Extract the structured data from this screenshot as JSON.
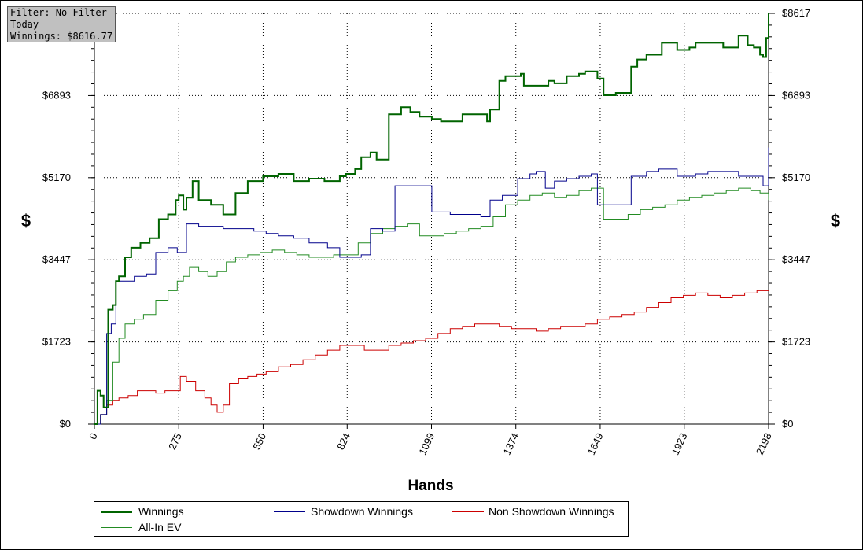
{
  "info": {
    "filter": "Filter: No Filter",
    "period": "Today",
    "winnings": "Winnings: $8616.77"
  },
  "chart_data": {
    "type": "line",
    "xlabel": "Hands",
    "ylabel": "$",
    "xlim": [
      0,
      2198
    ],
    "ylim": [
      0,
      8617
    ],
    "x_ticks": [
      "0",
      "275",
      "550",
      "824",
      "1099",
      "1374",
      "1649",
      "1923",
      "2198"
    ],
    "x_tick_values": [
      0,
      275,
      550,
      824,
      1099,
      1374,
      1649,
      1923,
      2198
    ],
    "y_ticks": [
      "$0",
      "$1723",
      "$3447",
      "$5170",
      "$6893",
      "$8617"
    ],
    "y_tick_values": [
      0,
      1723,
      3447,
      5170,
      6893,
      8617
    ],
    "grid": true,
    "legend_position": "bottom",
    "series": [
      {
        "name": "Winnings",
        "color": "#006400",
        "width": 2,
        "x": [
          0,
          10,
          20,
          30,
          45,
          60,
          70,
          80,
          100,
          120,
          150,
          180,
          210,
          240,
          265,
          275,
          290,
          300,
          320,
          340,
          380,
          420,
          460,
          500,
          550,
          600,
          650,
          700,
          750,
          800,
          820,
          850,
          870,
          900,
          920,
          960,
          1000,
          1030,
          1060,
          1100,
          1130,
          1200,
          1280,
          1290,
          1320,
          1340,
          1390,
          1400,
          1430,
          1480,
          1500,
          1540,
          1580,
          1600,
          1640,
          1660,
          1700,
          1750,
          1770,
          1800,
          1850,
          1900,
          1940,
          1960,
          2000,
          2050,
          2100,
          2130,
          2150,
          2170,
          2180,
          2190,
          2198
        ],
        "y": [
          0,
          700,
          600,
          350,
          2400,
          2500,
          3000,
          3100,
          3500,
          3700,
          3800,
          3900,
          4300,
          4400,
          4700,
          4800,
          4500,
          4750,
          5100,
          4700,
          4600,
          4400,
          4850,
          5100,
          5200,
          5250,
          5100,
          5150,
          5100,
          5200,
          5250,
          5350,
          5600,
          5700,
          5550,
          6500,
          6650,
          6550,
          6450,
          6400,
          6350,
          6500,
          6350,
          6600,
          7200,
          7300,
          7350,
          7100,
          7100,
          7200,
          7150,
          7300,
          7350,
          7400,
          7250,
          6900,
          6950,
          7500,
          7650,
          7750,
          8000,
          7850,
          7900,
          8000,
          8000,
          7900,
          8150,
          7950,
          7900,
          7750,
          7700,
          8100,
          8617
        ]
      },
      {
        "name": "Showdown Winnings",
        "color": "#00008b",
        "width": 1,
        "x": [
          0,
          20,
          40,
          55,
          70,
          100,
          130,
          170,
          200,
          240,
          270,
          300,
          340,
          380,
          420,
          460,
          520,
          560,
          600,
          650,
          700,
          760,
          800,
          840,
          870,
          900,
          940,
          980,
          1060,
          1100,
          1160,
          1200,
          1260,
          1290,
          1330,
          1380,
          1420,
          1440,
          1470,
          1500,
          1540,
          1580,
          1620,
          1640,
          1660,
          1700,
          1750,
          1800,
          1840,
          1900,
          1960,
          2000,
          2050,
          2100,
          2150,
          2180,
          2198
        ],
        "y": [
          0,
          200,
          1900,
          2100,
          3000,
          3000,
          3100,
          3150,
          3600,
          3700,
          3600,
          4200,
          4150,
          4150,
          4100,
          4100,
          4050,
          4000,
          3950,
          3900,
          3800,
          3700,
          3500,
          3500,
          3550,
          4100,
          4050,
          5000,
          5000,
          4450,
          4400,
          4400,
          4350,
          4700,
          4800,
          5150,
          5250,
          5300,
          4950,
          5100,
          5150,
          5200,
          5250,
          4600,
          4600,
          4600,
          5200,
          5300,
          5350,
          5200,
          5250,
          5300,
          5300,
          5200,
          5200,
          5000,
          5800
        ]
      },
      {
        "name": "Non Showdown Winnings",
        "color": "#cc0000",
        "width": 1,
        "x": [
          0,
          20,
          40,
          60,
          80,
          110,
          140,
          170,
          200,
          230,
          260,
          280,
          300,
          330,
          360,
          380,
          400,
          420,
          440,
          470,
          500,
          530,
          560,
          600,
          640,
          680,
          720,
          760,
          800,
          840,
          880,
          920,
          960,
          1000,
          1040,
          1080,
          1120,
          1160,
          1200,
          1240,
          1280,
          1320,
          1360,
          1400,
          1440,
          1480,
          1520,
          1560,
          1600,
          1640,
          1680,
          1720,
          1760,
          1800,
          1840,
          1880,
          1920,
          1960,
          2000,
          2040,
          2080,
          2120,
          2160,
          2198
        ],
        "y": [
          0,
          200,
          400,
          500,
          550,
          600,
          700,
          700,
          650,
          700,
          700,
          1000,
          900,
          700,
          550,
          400,
          250,
          400,
          850,
          950,
          1000,
          1050,
          1100,
          1200,
          1250,
          1350,
          1450,
          1550,
          1650,
          1650,
          1550,
          1550,
          1650,
          1700,
          1750,
          1800,
          1900,
          2000,
          2050,
          2100,
          2100,
          2050,
          2000,
          2000,
          1950,
          2000,
          2050,
          2050,
          2100,
          2200,
          2250,
          2300,
          2350,
          2450,
          2550,
          2650,
          2700,
          2750,
          2700,
          2650,
          2700,
          2750,
          2800,
          2800
        ]
      },
      {
        "name": "All-In EV",
        "color": "#228b22",
        "width": 1,
        "x": [
          0,
          20,
          40,
          60,
          80,
          100,
          130,
          160,
          200,
          240,
          270,
          290,
          310,
          340,
          370,
          400,
          430,
          460,
          500,
          540,
          580,
          620,
          660,
          700,
          740,
          780,
          820,
          860,
          900,
          940,
          980,
          1020,
          1060,
          1100,
          1140,
          1180,
          1220,
          1260,
          1300,
          1340,
          1380,
          1420,
          1460,
          1500,
          1540,
          1580,
          1620,
          1660,
          1700,
          1740,
          1780,
          1820,
          1860,
          1900,
          1940,
          1980,
          2020,
          2060,
          2100,
          2140,
          2170,
          2198
        ],
        "y": [
          0,
          200,
          500,
          1300,
          1800,
          2100,
          2200,
          2300,
          2600,
          2800,
          3000,
          3100,
          3300,
          3200,
          3100,
          3200,
          3400,
          3500,
          3550,
          3600,
          3650,
          3600,
          3550,
          3500,
          3500,
          3550,
          3550,
          3800,
          4000,
          4100,
          4150,
          4200,
          3950,
          3950,
          4000,
          4050,
          4100,
          4150,
          4350,
          4600,
          4700,
          4800,
          4850,
          4750,
          4800,
          4900,
          4950,
          4300,
          4300,
          4400,
          4500,
          4550,
          4600,
          4700,
          4750,
          4800,
          4850,
          4900,
          4950,
          4900,
          4850,
          4700
        ]
      }
    ],
    "legend_order": [
      "Winnings",
      "Showdown Winnings",
      "Non Showdown Winnings",
      "All-In EV"
    ]
  }
}
